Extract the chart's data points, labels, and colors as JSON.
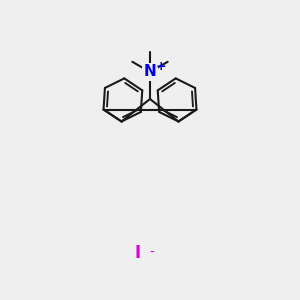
{
  "bg_color": "#efefef",
  "bond_color": "#1a1a1a",
  "N_color": "#0000ee",
  "I_color": "#dd00dd",
  "lw": 1.5,
  "N_label": "N",
  "plus_label": "+",
  "I_label": "I",
  "minus_label": "-",
  "font_size_N": 11,
  "font_size_charge": 9,
  "font_size_I": 12
}
